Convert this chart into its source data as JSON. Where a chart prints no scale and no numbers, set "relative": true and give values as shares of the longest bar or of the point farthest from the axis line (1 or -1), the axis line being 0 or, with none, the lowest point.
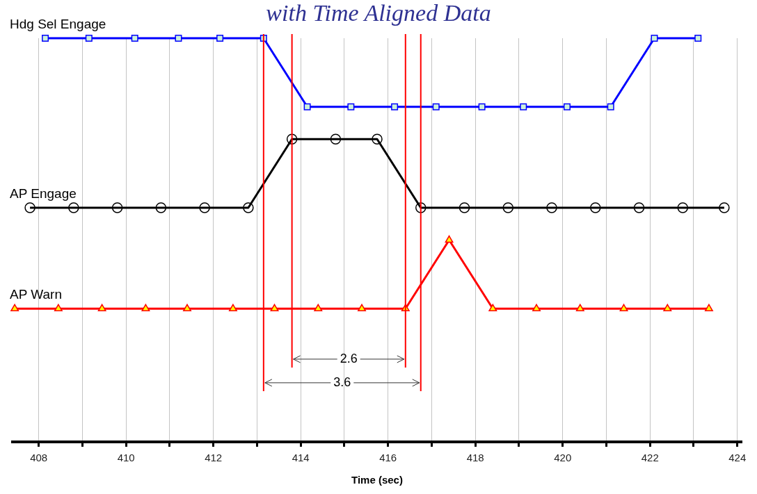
{
  "chart_data": {
    "type": "line",
    "title": "with Time Aligned Data",
    "xlabel": "Time (sec)",
    "relative": true,
    "grid": "x",
    "legend": false,
    "tick_labels": "x",
    "line_style": "solid",
    "xlim": [
      407.4,
      424.1
    ],
    "xticks": [
      408,
      {
        "value": 409,
        "label": null
      },
      410,
      {
        "value": 411,
        "label": null
      },
      412,
      {
        "value": 413,
        "label": null
      },
      414,
      {
        "value": 415,
        "label": null
      },
      416,
      {
        "value": 417,
        "label": null
      },
      418,
      {
        "value": 419,
        "label": null
      },
      420,
      {
        "value": 421,
        "label": null
      },
      422,
      {
        "value": 423,
        "label": null
      },
      424
    ],
    "series": [
      {
        "name": "Hdg Sel Engage",
        "color": "#0000ff",
        "marker": "square",
        "x": [
          408.15,
          409.15,
          410.2,
          411.2,
          412.15,
          413.15,
          414.15,
          415.15,
          416.15,
          417.1,
          418.15,
          419.1,
          420.1,
          421.1,
          422.1,
          423.1
        ],
        "values": [
          1,
          1,
          1,
          1,
          1,
          1,
          0.83,
          0.83,
          0.83,
          0.83,
          0.83,
          0.83,
          0.83,
          0.83,
          1,
          1
        ]
      },
      {
        "name": "AP Engage",
        "color": "#000000",
        "marker": "circle",
        "x": [
          407.8,
          408.8,
          409.8,
          410.8,
          411.8,
          412.8,
          413.8,
          414.8,
          415.75,
          416.75,
          417.75,
          418.75,
          419.75,
          420.75,
          421.75,
          422.75,
          423.7
        ],
        "values": [
          0.58,
          0.58,
          0.58,
          0.58,
          0.58,
          0.58,
          0.75,
          0.75,
          0.75,
          0.58,
          0.58,
          0.58,
          0.58,
          0.58,
          0.58,
          0.58,
          0.58
        ]
      },
      {
        "name": "AP Warn",
        "color": "#ff0000",
        "marker": "triangle",
        "x": [
          407.45,
          408.45,
          409.45,
          410.45,
          411.4,
          412.45,
          413.4,
          414.4,
          415.4,
          416.4,
          417.4,
          418.4,
          419.4,
          420.4,
          421.4,
          422.4,
          423.35
        ],
        "values": [
          0.33,
          0.33,
          0.33,
          0.33,
          0.33,
          0.33,
          0.33,
          0.33,
          0.33,
          0.33,
          0.5,
          0.33,
          0.33,
          0.33,
          0.33,
          0.33,
          0.33
        ]
      }
    ],
    "ref_lines": [
      {
        "axis": "x",
        "value": 413.8,
        "color": "#ff0000"
      },
      {
        "axis": "x",
        "value": 416.4,
        "color": "#ff0000"
      },
      {
        "axis": "x",
        "value": 413.15,
        "color": "#ff0000"
      },
      {
        "axis": "x",
        "value": 416.75,
        "color": "#ff0000"
      }
    ],
    "annotations": [
      "2.6",
      "3.6"
    ]
  }
}
